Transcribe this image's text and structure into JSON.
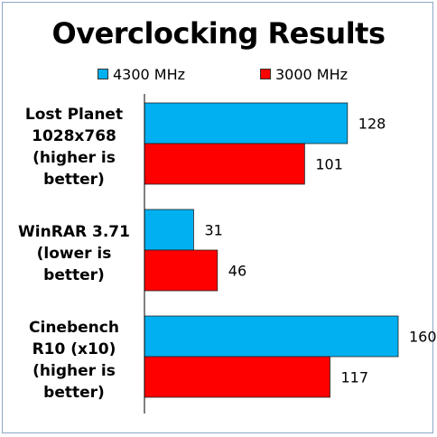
{
  "chart_data": {
    "type": "bar",
    "orientation": "horizontal",
    "title": "Overclocking Results",
    "categories": [
      "Lost Planet\n1028x768\n(higher is\nbetter)",
      "WinRAR 3.71\n(lower is\nbetter)",
      "Cinebench\nR10 (x10)\n(higher is\nbetter)"
    ],
    "series": [
      {
        "name": "4300 MHz",
        "color": "#00b0f0",
        "values": [
          128,
          31,
          160
        ]
      },
      {
        "name": "3000 MHz",
        "color": "#ff0000",
        "values": [
          101,
          46,
          117
        ]
      }
    ],
    "xlim": [
      0,
      160
    ],
    "grid": false,
    "legend_position": "top"
  }
}
